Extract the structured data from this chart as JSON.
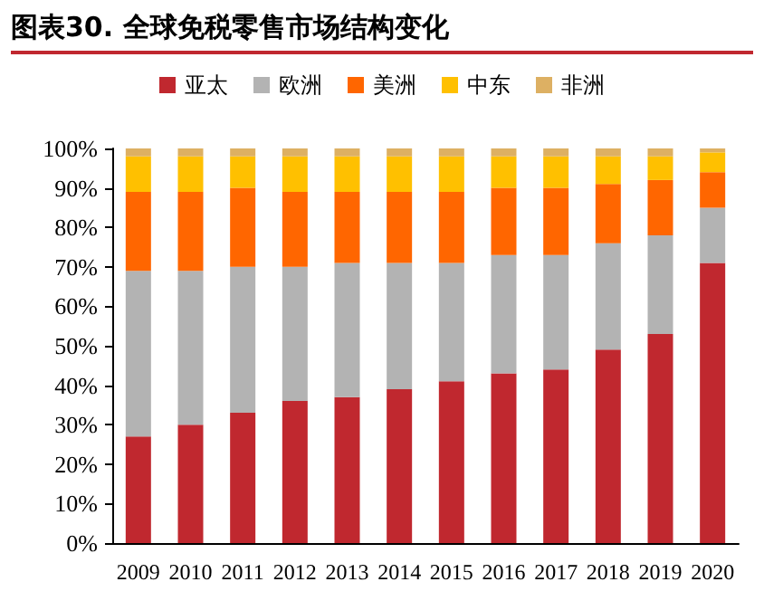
{
  "chart_data": {
    "type": "bar",
    "title": "图表30. 全球免税零售市场结构变化",
    "stacked": true,
    "legend": "top",
    "grid": false,
    "categories": [
      "2009",
      "2010",
      "2011",
      "2012",
      "2013",
      "2014",
      "2015",
      "2016",
      "2017",
      "2018",
      "2019",
      "2020"
    ],
    "series": [
      {
        "name": "亚太",
        "color": "#c0282f",
        "values": [
          27,
          30,
          33,
          36,
          37,
          39,
          41,
          43,
          44,
          49,
          53,
          71
        ]
      },
      {
        "name": "欧洲",
        "color": "#b3b3b3",
        "values": [
          42,
          39,
          37,
          34,
          34,
          32,
          30,
          30,
          29,
          27,
          25,
          14
        ]
      },
      {
        "name": "美洲",
        "color": "#ff6600",
        "values": [
          20,
          20,
          20,
          19,
          18,
          18,
          18,
          17,
          17,
          15,
          14,
          9
        ]
      },
      {
        "name": "中东",
        "color": "#ffc000",
        "values": [
          9,
          9,
          8,
          9,
          9,
          9,
          9,
          8,
          8,
          7,
          6,
          5
        ]
      },
      {
        "name": "非洲",
        "color": "#ddb063",
        "values": [
          2,
          2,
          2,
          2,
          2,
          2,
          2,
          2,
          2,
          2,
          2,
          1
        ]
      }
    ],
    "ylim": [
      0,
      100
    ],
    "yticks": [
      {
        "value": 0,
        "label": "0%"
      },
      {
        "value": 10,
        "label": "10%"
      },
      {
        "value": 20,
        "label": "20%"
      },
      {
        "value": 30,
        "label": "30%"
      },
      {
        "value": 40,
        "label": "40%"
      },
      {
        "value": 50,
        "label": "50%"
      },
      {
        "value": 60,
        "label": "60%"
      },
      {
        "value": 70,
        "label": "70%"
      },
      {
        "value": 80,
        "label": "80%"
      },
      {
        "value": 90,
        "label": "90%"
      },
      {
        "value": 100,
        "label": "100%"
      }
    ]
  }
}
